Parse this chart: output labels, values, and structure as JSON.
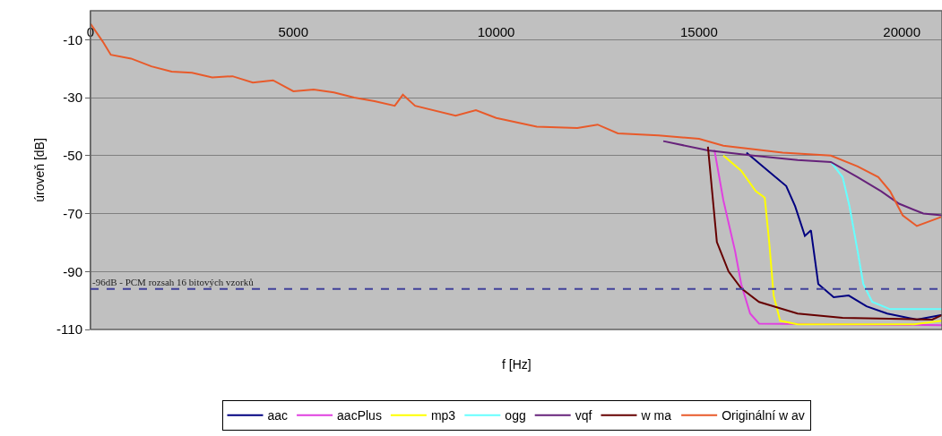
{
  "chart_data": {
    "type": "line",
    "xlabel": "f [Hz]",
    "ylabel": "úroveň [dB]",
    "xlim": [
      0,
      20990
    ],
    "xticks": [
      0,
      5000,
      10000,
      15000,
      20000
    ],
    "ylim": [
      -110,
      0
    ],
    "yticks": [
      -110,
      -90,
      -70,
      -50,
      -30,
      -10
    ],
    "grid": "y",
    "legend": "bottom",
    "marker": "none",
    "line_style": "solid",
    "ref_lines": [
      {
        "axis": "y",
        "value": -96,
        "label": "-96dB - PCM rozsah 16 bitových vzorků",
        "color": "#40409a",
        "line_style": "dashed"
      }
    ],
    "series": [
      {
        "name": "aac",
        "color": "#000080",
        "x": [
          16170,
          16700,
          17150,
          17370,
          17610,
          17760,
          17830,
          17940,
          18320,
          18690,
          19130,
          19640,
          20370,
          20990
        ],
        "values": [
          -49,
          -55.2,
          -60.5,
          -67.5,
          -77.7,
          -75.8,
          -83,
          -94.3,
          -98.9,
          -98.3,
          -102,
          -104.5,
          -106.6,
          -105
        ]
      },
      {
        "name": "aacPlus",
        "color": "#e040e0",
        "x": [
          15380,
          15600,
          15890,
          16040,
          16260,
          16480,
          20990
        ],
        "values": [
          -48,
          -65.4,
          -83,
          -94.3,
          -104.5,
          -108,
          -108.5
        ]
      },
      {
        "name": "mp3",
        "color": "#ffff00",
        "x": [
          15600,
          16040,
          16400,
          16620,
          16730,
          16840,
          17000,
          17430,
          20300,
          20990
        ],
        "values": [
          -50,
          -55.2,
          -62.3,
          -64.5,
          -79.8,
          -98.3,
          -107,
          -108.2,
          -108.2,
          -107
        ]
      },
      {
        "name": "ogg",
        "color": "#66ffff",
        "x": [
          18250,
          18540,
          18710,
          18910,
          19050,
          19270,
          19710,
          20990
        ],
        "values": [
          -52.2,
          -57.4,
          -67.5,
          -83,
          -94.3,
          -100.5,
          -103,
          -103
        ]
      },
      {
        "name": "vqf",
        "color": "#66227a",
        "x": [
          14120,
          15220,
          16330,
          17430,
          18250,
          18910,
          19490,
          19930,
          20530,
          20990
        ],
        "values": [
          -45,
          -48.2,
          -50,
          -51.5,
          -52.2,
          -57.4,
          -62.3,
          -66.6,
          -70,
          -70.6
        ]
      },
      {
        "name": "w ma",
        "color": "#660000",
        "x": [
          15220,
          15290,
          15440,
          15730,
          16040,
          16480,
          17430,
          18540,
          20750,
          20990
        ],
        "values": [
          -46.9,
          -57.4,
          -79.8,
          -90,
          -95.8,
          -100.5,
          -104.5,
          -106,
          -106.6,
          -105
        ]
      },
      {
        "name": "Originální w av",
        "color": "#e85a2a",
        "x": [
          0,
          300,
          500,
          1000,
          1500,
          2000,
          2500,
          3000,
          3500,
          4000,
          4500,
          5000,
          5500,
          6000,
          6500,
          7000,
          7500,
          7700,
          8000,
          9000,
          9500,
          10000,
          11000,
          12000,
          12500,
          13000,
          14000,
          15000,
          15600,
          17060,
          18250,
          18910,
          19420,
          19710,
          20020,
          20370,
          20970
        ],
        "values": [
          -4.5,
          -10.6,
          -15.2,
          -16.5,
          -19.2,
          -21,
          -21.4,
          -23,
          -22.6,
          -24.8,
          -24,
          -27.8,
          -27.2,
          -28.2,
          -30,
          -31.2,
          -32.8,
          -29,
          -32.8,
          -36.2,
          -34.3,
          -37,
          -40,
          -40.5,
          -39.3,
          -42.3,
          -43,
          -44.2,
          -46.6,
          -49,
          -50,
          -53.7,
          -57.4,
          -62.3,
          -70.6,
          -74.3,
          -71.2
        ]
      }
    ]
  }
}
